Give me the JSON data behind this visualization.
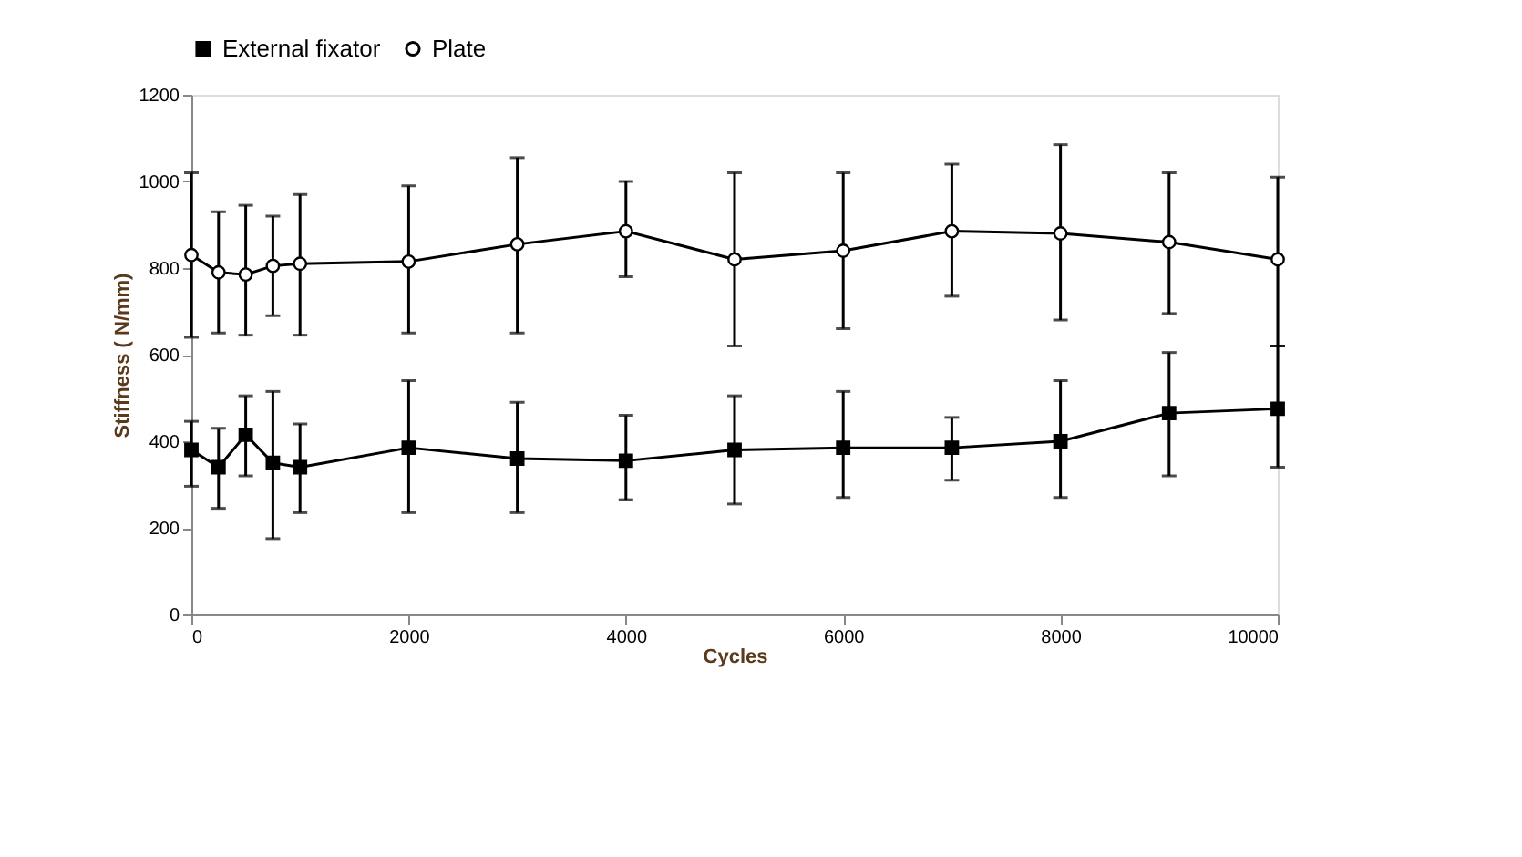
{
  "chart_data": {
    "type": "line",
    "xlabel": "Cycles",
    "ylabel": "Stiffness ( N/mm)",
    "xlim": [
      0,
      10000
    ],
    "xticks": [
      0,
      2000,
      4000,
      6000,
      8000,
      10000
    ],
    "ylim": [
      0,
      1200
    ],
    "yticks": [
      0,
      200,
      400,
      600,
      800,
      1000,
      1200
    ],
    "grid": false,
    "legend": "top",
    "x": [
      0,
      250,
      500,
      750,
      1000,
      2000,
      3000,
      4000,
      5000,
      6000,
      7000,
      8000,
      9000,
      10000
    ],
    "series": [
      {
        "name": "External fixator",
        "color": "#000000",
        "marker": "square",
        "values": [
          380,
          340,
          415,
          350,
          340,
          385,
          360,
          355,
          380,
          385,
          385,
          400,
          465,
          475
        ],
        "errors": [
          [
            296,
            446
          ],
          [
            245,
            430
          ],
          [
            320,
            505
          ],
          [
            175,
            515
          ],
          [
            235,
            440
          ],
          [
            235,
            540
          ],
          [
            235,
            490
          ],
          [
            265,
            460
          ],
          [
            255,
            505
          ],
          [
            270,
            515
          ],
          [
            310,
            455
          ],
          [
            270,
            540
          ],
          [
            320,
            605
          ],
          [
            340,
            620
          ]
        ]
      },
      {
        "name": "Plate",
        "color": "#000000",
        "marker": "circle",
        "values": [
          830,
          790,
          785,
          805,
          810,
          815,
          855,
          885,
          820,
          840,
          885,
          880,
          860,
          820
        ],
        "errors": [
          [
            640,
            1020
          ],
          [
            650,
            930
          ],
          [
            645,
            945
          ],
          [
            690,
            920
          ],
          [
            645,
            970
          ],
          [
            650,
            990
          ],
          [
            650,
            1055
          ],
          [
            780,
            1000
          ],
          [
            620,
            1020
          ],
          [
            660,
            1020
          ],
          [
            735,
            1040
          ],
          [
            680,
            1085
          ],
          [
            695,
            1020
          ],
          [
            620,
            1010
          ]
        ]
      }
    ]
  }
}
